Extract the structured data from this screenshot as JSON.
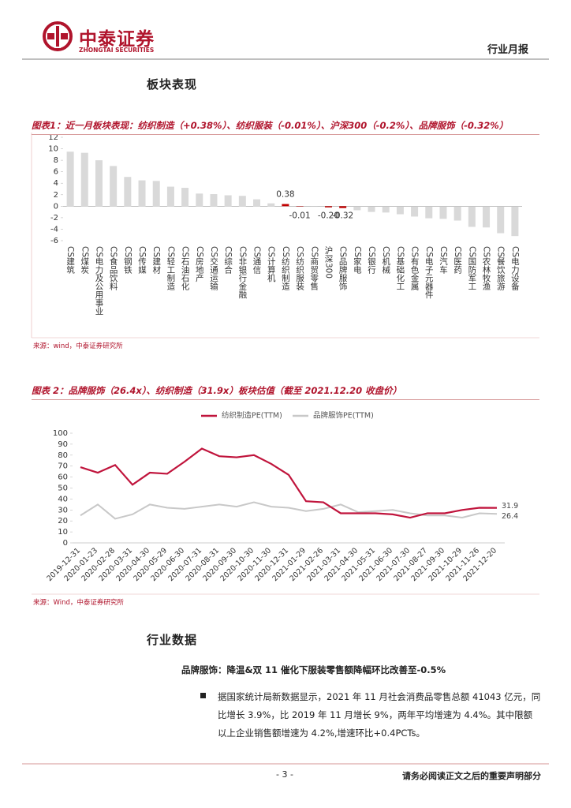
{
  "header": {
    "brand": "中泰证券",
    "brand_en": "ZHONGTAI SECURITIES",
    "report_type": "行业月报"
  },
  "sections": [
    {
      "title": "板块表现"
    },
    {
      "title": "行业数据",
      "subheading": "品牌服饰：降温&双 11 催化下服装零售额降幅环比改善至-0.5%",
      "paragraph": "据国家统计局新数据显示，2021 年 11 月社会消费品零售总额 41043 亿元，同比增长 3.9%，比 2019 年 11 月增长 9%，两年平均增速为 4.4%。其中限额以上企业销售额增速为 4.2%,增速环比+0.4PCTs。"
    }
  ],
  "chart_data": [
    {
      "type": "bar",
      "title": "图表1：近一月板块表现：纺织制造（+0.38%）、纺织服装（-0.01%）、沪深300（-0.2%）、品牌服饰（-0.32%）",
      "categories": [
        "CS建筑",
        "CS煤炭",
        "CS电力及公用事业",
        "CS食品饮料",
        "CS钢铁",
        "CS传媒",
        "CS建材",
        "CS轻工制造",
        "CS石油石化",
        "CS房地产",
        "CS交通运输",
        "CS综合",
        "CS非银行金融",
        "CS通信",
        "CS计算机",
        "CS纺织制造",
        "CS纺织服装",
        "CS商贸零售",
        "沪深300",
        "CS品牌服饰",
        "CS家电",
        "CS银行",
        "CS机械",
        "CS基础化工",
        "CS有色金属",
        "CS电子元器件",
        "CS汽车",
        "CS医药",
        "CS国防军工",
        "CS农林牧渔",
        "CS餐饮旅游",
        "CS电力设备"
      ],
      "values": [
        9.5,
        9.3,
        8.0,
        7.0,
        5.1,
        4.5,
        4.4,
        3.4,
        3.2,
        2.2,
        2.1,
        1.9,
        1.8,
        1.2,
        0.5,
        0.38,
        -0.01,
        -0.1,
        -0.2,
        -0.32,
        -0.7,
        -1.0,
        -1.1,
        -1.4,
        -1.8,
        -2.1,
        -2.2,
        -2.5,
        -3.6,
        -3.7,
        -4.7,
        -5.2
      ],
      "value_labels": [
        null,
        null,
        null,
        null,
        null,
        null,
        null,
        null,
        null,
        null,
        null,
        null,
        null,
        null,
        null,
        "0.38",
        "-0.01",
        null,
        "-0.20",
        "-0.32",
        null,
        null,
        null,
        null,
        null,
        null,
        null,
        null,
        null,
        null,
        null,
        null
      ],
      "color": "#d9d9d9",
      "highlight_color": "#c00000",
      "ylim": [
        -6,
        12
      ],
      "yticks": [
        -6,
        -4,
        -2,
        0,
        2,
        4,
        6,
        8,
        10,
        12
      ],
      "grid": false,
      "source": "来源：wind，中泰证券研究所"
    },
    {
      "type": "line",
      "title": "图表 2：品牌服饰（26.4x）、纺织制造（31.9x）板块估值（截至 2021.12.20 收盘价）",
      "categories": [
        "2019-12-31",
        "2020-01-23",
        "2020-02-28",
        "2020-03-31",
        "2020-04-30",
        "2020-05-29",
        "2020-06-30",
        "2020-07-31",
        "2020-08-31",
        "2020-09-30",
        "2020-10-30",
        "2020-11-30",
        "2020-12-31",
        "2021-01-29",
        "2021-02-26",
        "2021-03-31",
        "2021-04-30",
        "2021-05-31",
        "2021-06-30",
        "2021-07-30",
        "2021-08-27",
        "2021-09-30",
        "2021-10-29",
        "2021-11-26",
        "2021-12-20"
      ],
      "series": [
        {
          "name": "纺织制造PE(TTM)",
          "color": "#c0143c",
          "values": [
            69,
            64,
            71,
            53,
            64,
            63,
            74,
            86,
            79,
            78,
            80,
            72,
            62,
            38,
            37,
            27,
            27,
            27,
            26,
            23,
            27,
            27,
            30,
            32,
            31.9
          ]
        },
        {
          "name": "品牌服饰PE(TTM)",
          "color": "#c8c8c8",
          "values": [
            25,
            35,
            22,
            26,
            35,
            32,
            31,
            33,
            35,
            33,
            37,
            33,
            32,
            29,
            31,
            35,
            28,
            29,
            30,
            27,
            25,
            25,
            23,
            27,
            26.4
          ]
        }
      ],
      "ylim": [
        0,
        100
      ],
      "yticks": [
        0,
        10,
        20,
        30,
        40,
        50,
        60,
        70,
        80,
        90,
        100
      ],
      "grid": false,
      "legend": "top",
      "source": "来源：Wind，中泰证券研究所"
    }
  ],
  "footer": {
    "page": "- 3 -",
    "note": "请务必阅读正文之后的重要声明部分"
  }
}
